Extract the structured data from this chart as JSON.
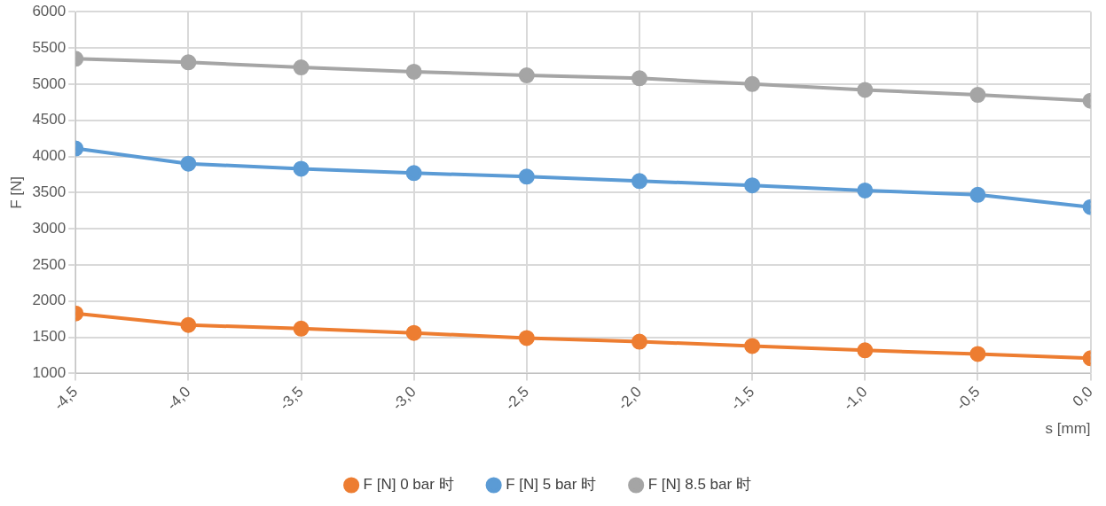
{
  "chart_data": {
    "type": "line",
    "xlabel": "s [mm]",
    "ylabel": "F [N]",
    "x": [
      -4.5,
      -4,
      -3.5,
      -3,
      -2.5,
      -2,
      -1.5,
      -1,
      -0.5,
      0
    ],
    "xlim": [
      -4.5,
      0
    ],
    "xticks": [
      {
        "value": -4.5,
        "label": "-4,5"
      },
      {
        "value": -4,
        "label": "-4,0"
      },
      {
        "value": -3.5,
        "label": "-3,5"
      },
      {
        "value": -3,
        "label": "-3,0"
      },
      {
        "value": -2.5,
        "label": "-2,5"
      },
      {
        "value": -2,
        "label": "-2,0"
      },
      {
        "value": -1.5,
        "label": "-1,5"
      },
      {
        "value": -1,
        "label": "-1,0"
      },
      {
        "value": -0.5,
        "label": "-0,5"
      },
      {
        "value": 0,
        "label": "0,0"
      }
    ],
    "ylim": [
      1000,
      6000
    ],
    "yticks": [
      1000,
      1500,
      2000,
      2500,
      3000,
      3500,
      4000,
      4500,
      5000,
      5500,
      6000
    ],
    "grid": true,
    "legend": "bottom",
    "marker": "circle",
    "line_style": "solid",
    "series": [
      {
        "name": "F [N] 0 bar 时",
        "color": "#ed7d31",
        "values": [
          1830,
          1670,
          1620,
          1560,
          1490,
          1440,
          1380,
          1320,
          1270,
          1210
        ]
      },
      {
        "name": "F [N] 5 bar 时",
        "color": "#5b9bd5",
        "values": [
          4110,
          3900,
          3830,
          3770,
          3720,
          3660,
          3600,
          3530,
          3470,
          3300
        ]
      },
      {
        "name": "F [N] 8.5 bar 时",
        "color": "#a5a5a5",
        "values": [
          5350,
          5300,
          5230,
          5170,
          5120,
          5080,
          5000,
          4920,
          4850,
          4770
        ]
      }
    ]
  }
}
